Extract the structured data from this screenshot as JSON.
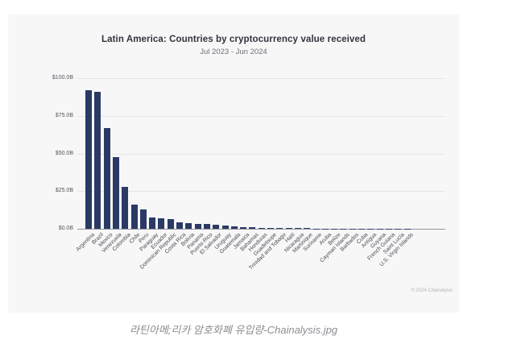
{
  "chart": {
    "title": "Latin America: Countries by cryptocurrency value received",
    "subtitle": "Jul 2023 - Jun 2024",
    "copyright": "© 2024 Chainalysis"
  },
  "caption": "라틴아메;리카 암호화폐 유입량-Chainalysis.jpg",
  "chart_data": {
    "type": "bar",
    "title": "Latin America: Countries by cryptocurrency value received",
    "subtitle": "Jul 2023 - Jun 2024",
    "xlabel": "",
    "ylabel": "",
    "ylim": [
      0,
      100
    ],
    "grid": true,
    "bar_color": "#2b3a64",
    "background_color": "#f7f7f8",
    "yticks": [
      {
        "value": 0,
        "label": "$0.0B"
      },
      {
        "value": 25,
        "label": "$25.0B"
      },
      {
        "value": 50,
        "label": "$50.0B"
      },
      {
        "value": 75,
        "label": "$75.0B"
      },
      {
        "value": 100,
        "label": "$100.0B"
      }
    ],
    "categories": [
      "Argentina",
      "Brazil",
      "Mexico",
      "Venezuela",
      "Colombia",
      "Chile",
      "Peru",
      "Paraguay",
      "Ecuador",
      "Dominican Republic",
      "Costa Rica",
      "Bolivia",
      "Panama",
      "Puerto Rico",
      "El Salvador",
      "Uruguay",
      "Guatemala",
      "Jamaica",
      "Bahamas",
      "Honduras",
      "Guadeloupe",
      "Trinidad and Tobago",
      "Haiti",
      "Nicaragua",
      "Martinique",
      "Suriname",
      "Aruba",
      "Belize",
      "Cayman Islands",
      "Barbados",
      "Cuba",
      "Antigua",
      "Guyana",
      "French Guiana",
      "Saint Lucia",
      "U.S. Virgin Islands"
    ],
    "values": [
      92,
      91,
      67,
      47.5,
      28,
      16,
      13,
      7.5,
      7,
      6.5,
      4.3,
      3.6,
      3.2,
      3.0,
      2.6,
      2.2,
      1.4,
      1.1,
      0.9,
      0.8,
      0.7,
      0.6,
      0.5,
      0.4,
      0.3,
      0.25,
      0.2,
      0.15,
      0.12,
      0.1,
      0.08,
      0.06,
      0.05,
      0.04,
      0.03,
      0.02
    ]
  }
}
